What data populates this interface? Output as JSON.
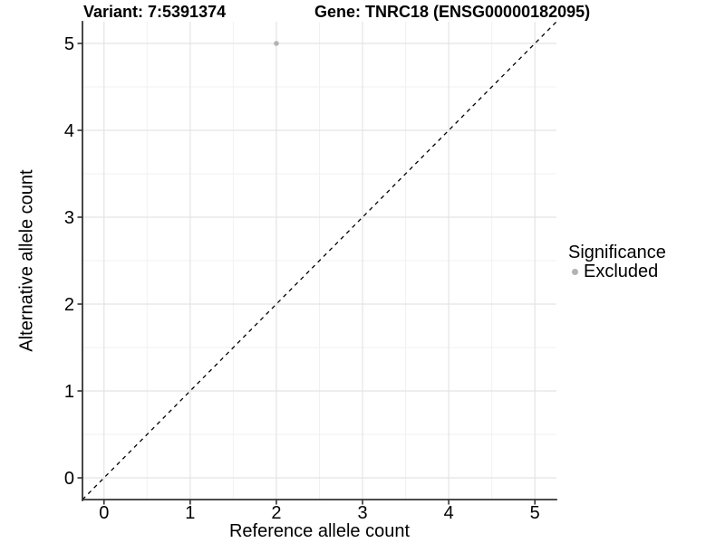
{
  "title": {
    "variant": "Variant: 7:5391374",
    "gene": "Gene: TNRC18 (ENSG00000182095)"
  },
  "legend": {
    "title": "Significance",
    "position": "right",
    "items": [
      {
        "label": "Excluded",
        "color": "#b3b3b3"
      }
    ]
  },
  "chart_data": {
    "type": "scatter",
    "title": "Variant: 7:5391374   Gene: TNRC18 (ENSG00000182095)",
    "xlabel": "Reference allele count",
    "ylabel": "Alternative allele count",
    "xlim": [
      -0.25,
      5.25
    ],
    "ylim": [
      -0.25,
      5.25
    ],
    "x_ticks": [
      0,
      1,
      2,
      3,
      4,
      5
    ],
    "y_ticks": [
      0,
      1,
      2,
      3,
      4,
      5
    ],
    "x_minor_ticks": [
      0.5,
      1.5,
      2.5,
      3.5,
      4.5
    ],
    "y_minor_ticks": [
      0.5,
      1.5,
      2.5,
      3.5,
      4.5
    ],
    "grid": true,
    "points": [
      {
        "x": 2,
        "y": 5,
        "significance": "Excluded"
      }
    ],
    "reference_line": {
      "type": "identity",
      "style": "dashed",
      "equation": "y = x"
    },
    "legend_position": "right",
    "colors": {
      "background": "#ffffff",
      "grid_major": "#e4e4e4",
      "grid_minor": "#f1f1f1",
      "axis_line": "#333333",
      "tick_mark": "#333333",
      "text": "#000000",
      "reference_line": "#000000",
      "excluded_point": "#b3b3b3"
    }
  }
}
